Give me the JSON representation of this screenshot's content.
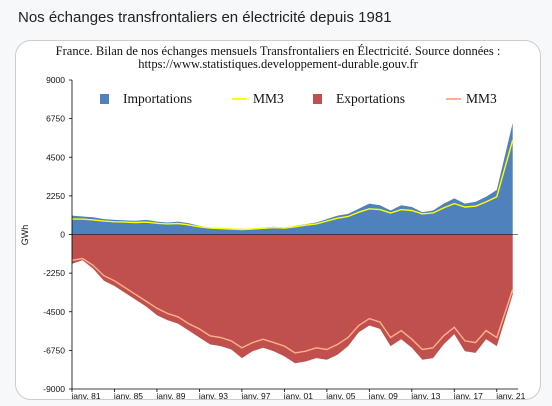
{
  "page": {
    "heading": "Nos échanges transfrontaliers en électricité depuis 1981"
  },
  "chart_data": {
    "type": "area",
    "title_line1": "France. Bilan de nos échanges mensuels Transfrontaliers en Électricité. Source données :",
    "title_line2": "https://www.statistiques.developpement-durable.gouv.fr",
    "ylabel": "GWh",
    "xlabel": "",
    "ylim": [
      -9000,
      9000
    ],
    "xlim": [
      1981,
      2023
    ],
    "yticks": [
      9000,
      6750,
      4500,
      2250,
      0,
      -2250,
      -4500,
      -6750,
      -9000
    ],
    "ytick_labels": [
      "9000",
      "6750",
      "4500",
      "2250",
      "0",
      "-2250",
      "-4500",
      "-6750",
      "-9000"
    ],
    "xticks": [
      1981,
      1985,
      1989,
      1993,
      1997,
      2001,
      2005,
      2009,
      2013,
      2017,
      2021
    ],
    "xtick_labels": [
      "janv. 81",
      "janv. 85",
      "janv. 89",
      "janv. 93",
      "janv. 97",
      "janv. 01",
      "janv. 05",
      "janv. 09",
      "janv. 13",
      "janv. 17",
      "janv. 21"
    ],
    "grid": false,
    "legend_position": "top",
    "colors": {
      "imports": "#4f81bd",
      "imports_mm3": "#ffff00",
      "exports": "#c0504d",
      "exports_mm3": "#ffb08a"
    },
    "series": [
      {
        "name": "Importations",
        "kind": "area",
        "x": [
          1981,
          1982,
          1983,
          1984,
          1985,
          1986,
          1987,
          1988,
          1989,
          1990,
          1991,
          1992,
          1993,
          1994,
          1995,
          1996,
          1997,
          1998,
          1999,
          2000,
          2001,
          2002,
          2003,
          2004,
          2005,
          2006,
          2007,
          2008,
          2009,
          2010,
          2011,
          2012,
          2013,
          2014,
          2015,
          2016,
          2017,
          2018,
          2019,
          2020,
          2021,
          2022.5
        ],
        "values": [
          1100,
          1050,
          1000,
          900,
          850,
          820,
          800,
          850,
          750,
          700,
          750,
          650,
          500,
          400,
          380,
          350,
          300,
          350,
          400,
          450,
          400,
          500,
          600,
          700,
          900,
          1100,
          1200,
          1500,
          1800,
          1700,
          1400,
          1700,
          1600,
          1300,
          1400,
          1800,
          2100,
          1800,
          1900,
          2200,
          2600,
          6500
        ]
      },
      {
        "name": "MM3",
        "kind": "line",
        "x": [
          1981,
          1982,
          1983,
          1984,
          1985,
          1986,
          1987,
          1988,
          1989,
          1990,
          1991,
          1992,
          1993,
          1994,
          1995,
          1996,
          1997,
          1998,
          1999,
          2000,
          2001,
          2002,
          2003,
          2004,
          2005,
          2006,
          2007,
          2008,
          2009,
          2010,
          2011,
          2012,
          2013,
          2014,
          2015,
          2016,
          2017,
          2018,
          2019,
          2020,
          2021,
          2022.5
        ],
        "values": [
          900,
          900,
          850,
          780,
          740,
          720,
          700,
          720,
          650,
          620,
          640,
          560,
          450,
          370,
          350,
          320,
          290,
          320,
          360,
          400,
          380,
          450,
          540,
          620,
          780,
          950,
          1050,
          1300,
          1500,
          1450,
          1250,
          1450,
          1400,
          1200,
          1250,
          1550,
          1800,
          1600,
          1650,
          1900,
          2200,
          5500
        ]
      },
      {
        "name": "Exportations",
        "kind": "area",
        "x": [
          1981,
          1982,
          1983,
          1984,
          1985,
          1986,
          1987,
          1988,
          1989,
          1990,
          1991,
          1992,
          1993,
          1994,
          1995,
          1996,
          1997,
          1998,
          1999,
          2000,
          2001,
          2002,
          2003,
          2004,
          2005,
          2006,
          2007,
          2008,
          2009,
          2010,
          2011,
          2012,
          2013,
          2014,
          2015,
          2016,
          2017,
          2018,
          2019,
          2020,
          2021,
          2022.5
        ],
        "values": [
          -1700,
          -1500,
          -2000,
          -2700,
          -3000,
          -3400,
          -3800,
          -4200,
          -4700,
          -5000,
          -5200,
          -5600,
          -6000,
          -6400,
          -6500,
          -6700,
          -7200,
          -6800,
          -6600,
          -6800,
          -7100,
          -7500,
          -7400,
          -7200,
          -7300,
          -7000,
          -6500,
          -5700,
          -5300,
          -5500,
          -6500,
          -6100,
          -6600,
          -7300,
          -7200,
          -6400,
          -5800,
          -6800,
          -6900,
          -6100,
          -6500,
          -3500
        ]
      },
      {
        "name": "MM3",
        "kind": "line",
        "x": [
          1981,
          1982,
          1983,
          1984,
          1985,
          1986,
          1987,
          1988,
          1989,
          1990,
          1991,
          1992,
          1993,
          1994,
          1995,
          1996,
          1997,
          1998,
          1999,
          2000,
          2001,
          2002,
          2003,
          2004,
          2005,
          2006,
          2007,
          2008,
          2009,
          2010,
          2011,
          2012,
          2013,
          2014,
          2015,
          2016,
          2017,
          2018,
          2019,
          2020,
          2021,
          2022.5
        ],
        "values": [
          -1500,
          -1400,
          -1800,
          -2400,
          -2700,
          -3100,
          -3500,
          -3900,
          -4300,
          -4600,
          -4800,
          -5200,
          -5500,
          -5900,
          -6000,
          -6200,
          -6600,
          -6300,
          -6100,
          -6300,
          -6500,
          -6900,
          -6800,
          -6600,
          -6700,
          -6400,
          -6000,
          -5300,
          -4900,
          -5100,
          -6000,
          -5600,
          -6100,
          -6700,
          -6600,
          -5900,
          -5400,
          -6200,
          -6300,
          -5600,
          -6000,
          -3200
        ]
      }
    ]
  }
}
